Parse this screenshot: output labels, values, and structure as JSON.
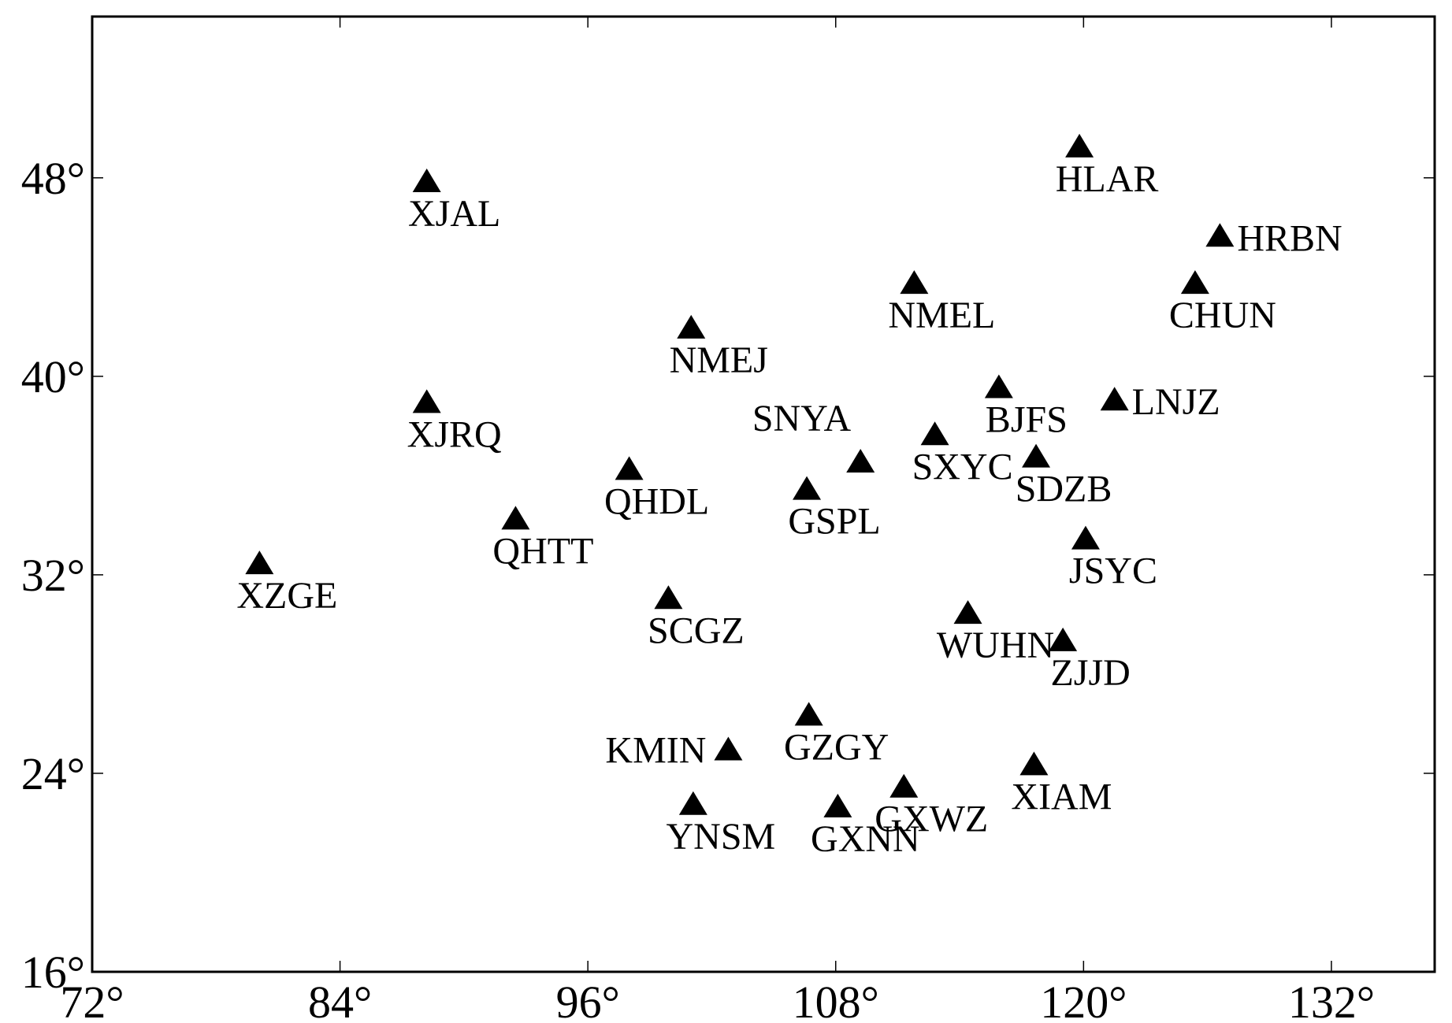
{
  "map": {
    "lon_range": [
      72,
      137
    ],
    "lat_range": [
      16,
      54.5
    ],
    "x_ticks": [
      {
        "value": 72,
        "label": "72°"
      },
      {
        "value": 84,
        "label": "84°"
      },
      {
        "value": 96,
        "label": "96°"
      },
      {
        "value": 108,
        "label": "108°"
      },
      {
        "value": 120,
        "label": "120°"
      },
      {
        "value": 132,
        "label": "132°"
      }
    ],
    "y_ticks": [
      {
        "value": 16,
        "label": "16°"
      },
      {
        "value": 24,
        "label": "24°"
      },
      {
        "value": 32,
        "label": "32°"
      },
      {
        "value": 40,
        "label": "40°"
      },
      {
        "value": 48,
        "label": "48°"
      }
    ],
    "marker_color": "#000000",
    "marker_shape": "triangle-up",
    "stations": [
      {
        "name": "XJAL",
        "lon": 88.2,
        "lat": 47.9
      },
      {
        "name": "HLAR",
        "lon": 119.8,
        "lat": 49.3
      },
      {
        "name": "HRBN",
        "lon": 126.6,
        "lat": 45.7
      },
      {
        "name": "CHUN",
        "lon": 125.4,
        "lat": 43.8
      },
      {
        "name": "NMEL",
        "lon": 111.8,
        "lat": 43.8
      },
      {
        "name": "NMEJ",
        "lon": 101.0,
        "lat": 42.0
      },
      {
        "name": "XJRQ",
        "lon": 88.2,
        "lat": 39.0
      },
      {
        "name": "BJFS",
        "lon": 115.9,
        "lat": 39.6
      },
      {
        "name": "LNJZ",
        "lon": 121.5,
        "lat": 39.1
      },
      {
        "name": "SNYA",
        "lon": 109.2,
        "lat": 36.6
      },
      {
        "name": "SXYC",
        "lon": 112.8,
        "lat": 37.7
      },
      {
        "name": "SDZB",
        "lon": 117.7,
        "lat": 36.8
      },
      {
        "name": "QHDL",
        "lon": 98.0,
        "lat": 36.3
      },
      {
        "name": "GSPL",
        "lon": 106.6,
        "lat": 35.5
      },
      {
        "name": "QHTT",
        "lon": 92.5,
        "lat": 34.3
      },
      {
        "name": "JSYC",
        "lon": 120.1,
        "lat": 33.5
      },
      {
        "name": "XZGE",
        "lon": 80.1,
        "lat": 32.5
      },
      {
        "name": "SCGZ",
        "lon": 99.9,
        "lat": 31.1
      },
      {
        "name": "WUHN",
        "lon": 114.4,
        "lat": 30.5
      },
      {
        "name": "ZJJD",
        "lon": 119.0,
        "lat": 29.4
      },
      {
        "name": "GZGY",
        "lon": 106.7,
        "lat": 26.4
      },
      {
        "name": "KMIN",
        "lon": 102.8,
        "lat": 25.0
      },
      {
        "name": "XIAM",
        "lon": 117.6,
        "lat": 24.4
      },
      {
        "name": "GXWZ",
        "lon": 111.3,
        "lat": 23.5
      },
      {
        "name": "YNSM",
        "lon": 101.1,
        "lat": 22.8
      },
      {
        "name": "GXNN",
        "lon": 108.1,
        "lat": 22.7
      }
    ]
  }
}
